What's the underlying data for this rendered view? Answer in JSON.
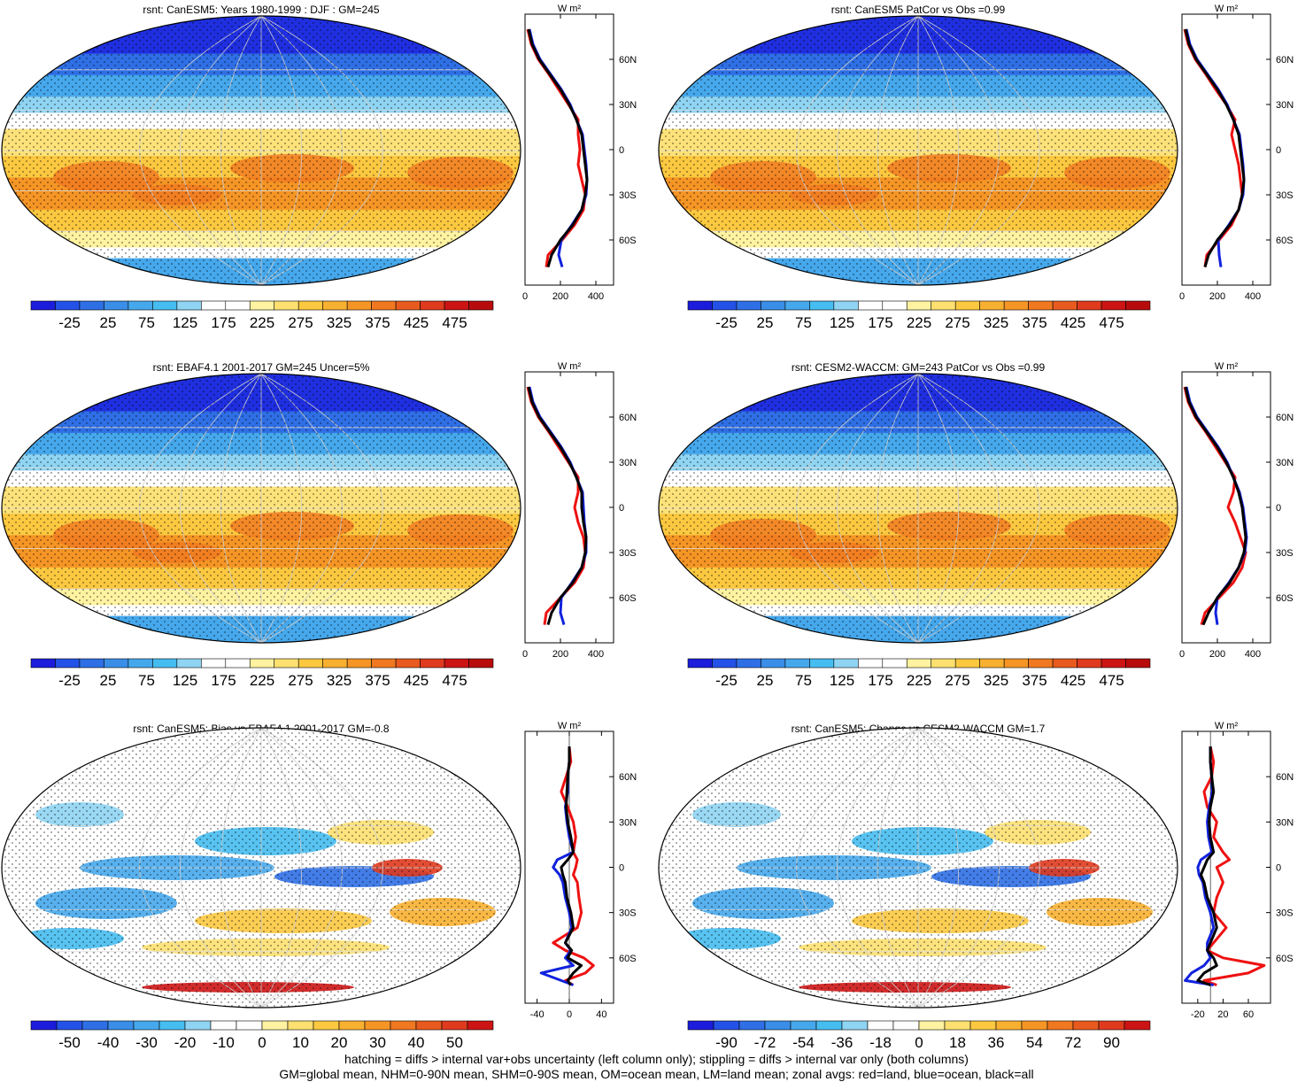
{
  "footer": {
    "line1": "hatching = diffs > internal var+obs uncertainty (left column only); stippling = diffs > internal var only (both columns)",
    "line2": "GM=global mean, NHM=0-90N mean, SHM=0-90S mean, OM=ocean mean, LM=land mean; zonal avgs: red=land, blue=ocean, black=all"
  },
  "colors": {
    "land": "#ee1111",
    "ocean": "#1122dd",
    "all": "#000000"
  },
  "chart_data": [
    {
      "type": "heatmap",
      "id": "p1",
      "title": "rsnt: CanESM5: Years 1980-1999 : DJF : GM=245",
      "colorbar_ticks": [
        "-25",
        "25",
        "75",
        "125",
        "175",
        "225",
        "275",
        "325",
        "375",
        "425",
        "475"
      ],
      "colorbar_range": [
        -50,
        500
      ],
      "zonal": {
        "xlabel": "W m²",
        "xticks": [
          "0",
          "200",
          "400"
        ],
        "xlim": [
          0,
          500
        ],
        "yticks": [
          "60N",
          "30N",
          "0",
          "30S",
          "60S"
        ],
        "lat": [
          80,
          70,
          60,
          50,
          40,
          30,
          20,
          10,
          0,
          -10,
          -20,
          -30,
          -40,
          -50,
          -60,
          -70,
          -78
        ],
        "all": [
          20,
          40,
          80,
          140,
          200,
          250,
          290,
          320,
          330,
          340,
          350,
          340,
          320,
          270,
          200,
          150,
          130
        ],
        "land": [
          15,
          35,
          75,
          135,
          190,
          245,
          300,
          300,
          310,
          300,
          320,
          340,
          330,
          280,
          210,
          130,
          120
        ],
        "ocean": [
          25,
          45,
          85,
          145,
          205,
          255,
          290,
          325,
          335,
          345,
          350,
          345,
          320,
          265,
          205,
          190,
          210
        ]
      },
      "style": "abs"
    },
    {
      "type": "heatmap",
      "id": "p2",
      "title": "rsnt: CanESM5 PatCor vs Obs =0.99",
      "colorbar_ticks": [
        "-25",
        "25",
        "75",
        "125",
        "175",
        "225",
        "275",
        "325",
        "375",
        "425",
        "475"
      ],
      "colorbar_range": [
        -50,
        500
      ],
      "zonal": {
        "xlabel": "W m²",
        "xticks": [
          "0",
          "200",
          "400"
        ],
        "xlim": [
          0,
          500
        ],
        "yticks": [
          "60N",
          "30N",
          "0",
          "30S",
          "60S"
        ],
        "lat": [
          80,
          70,
          60,
          50,
          40,
          30,
          20,
          10,
          0,
          -10,
          -20,
          -30,
          -40,
          -50,
          -60,
          -70,
          -78
        ],
        "all": [
          20,
          40,
          80,
          140,
          200,
          250,
          290,
          320,
          330,
          340,
          350,
          340,
          320,
          270,
          200,
          150,
          130
        ],
        "land": [
          15,
          35,
          75,
          135,
          190,
          250,
          300,
          280,
          300,
          320,
          330,
          340,
          320,
          280,
          210,
          140,
          130
        ],
        "ocean": [
          25,
          45,
          85,
          145,
          205,
          255,
          290,
          325,
          335,
          345,
          350,
          345,
          320,
          265,
          205,
          210,
          220
        ]
      },
      "style": "abs"
    },
    {
      "type": "heatmap",
      "id": "p3",
      "title": "rsnt: EBAF4.1 2001-2017 GM=245 Uncer=5%",
      "colorbar_ticks": [
        "-25",
        "25",
        "75",
        "125",
        "175",
        "225",
        "275",
        "325",
        "375",
        "425",
        "475"
      ],
      "colorbar_range": [
        -50,
        500
      ],
      "zonal": {
        "xlabel": "W m²",
        "xticks": [
          "0",
          "200",
          "400"
        ],
        "xlim": [
          0,
          500
        ],
        "yticks": [
          "60N",
          "30N",
          "0",
          "30S",
          "60S"
        ],
        "lat": [
          80,
          70,
          60,
          50,
          40,
          30,
          20,
          10,
          0,
          -10,
          -20,
          -30,
          -40,
          -50,
          -60,
          -70,
          -78
        ],
        "all": [
          20,
          40,
          80,
          140,
          200,
          250,
          290,
          320,
          320,
          330,
          345,
          340,
          320,
          270,
          200,
          150,
          130
        ],
        "land": [
          15,
          35,
          75,
          135,
          190,
          245,
          300,
          300,
          280,
          300,
          330,
          340,
          330,
          280,
          200,
          120,
          110
        ],
        "ocean": [
          25,
          45,
          85,
          145,
          205,
          255,
          290,
          325,
          330,
          335,
          345,
          345,
          320,
          265,
          205,
          200,
          220
        ]
      },
      "style": "abs"
    },
    {
      "type": "heatmap",
      "id": "p4",
      "title": "rsnt: CESM2-WACCM: GM=243 PatCor vs Obs =0.99",
      "colorbar_ticks": [
        "-25",
        "25",
        "75",
        "125",
        "175",
        "225",
        "275",
        "325",
        "375",
        "425",
        "475"
      ],
      "colorbar_range": [
        -50,
        500
      ],
      "zonal": {
        "xlabel": "W m²",
        "xticks": [
          "0",
          "200",
          "400"
        ],
        "xlim": [
          0,
          500
        ],
        "yticks": [
          "60N",
          "30N",
          "0",
          "30S",
          "60S"
        ],
        "lat": [
          80,
          70,
          60,
          50,
          40,
          30,
          20,
          10,
          0,
          -10,
          -20,
          -30,
          -40,
          -50,
          -60,
          -70,
          -78
        ],
        "all": [
          20,
          40,
          80,
          140,
          200,
          250,
          290,
          320,
          340,
          350,
          360,
          350,
          320,
          270,
          200,
          150,
          120
        ],
        "land": [
          15,
          35,
          75,
          135,
          190,
          245,
          300,
          290,
          260,
          300,
          330,
          360,
          340,
          290,
          210,
          130,
          110
        ],
        "ocean": [
          25,
          45,
          85,
          145,
          205,
          255,
          290,
          325,
          345,
          355,
          365,
          355,
          320,
          265,
          200,
          190,
          200
        ]
      },
      "style": "abs"
    },
    {
      "type": "heatmap",
      "id": "p5",
      "title": "rsnt: CanESM5: Bias vs EBAF4.1 2001-2017 GM=-0.8",
      "colorbar_ticks": [
        "-50",
        "-40",
        "-30",
        "-20",
        "-10",
        "0",
        "10",
        "20",
        "30",
        "40",
        "50"
      ],
      "colorbar_range": [
        -55,
        55
      ],
      "zonal": {
        "xlabel": "W m²",
        "xticks": [
          "-40",
          "0",
          "40"
        ],
        "xlim": [
          -55,
          55
        ],
        "yticks": [
          "60N",
          "30N",
          "0",
          "30S",
          "60S"
        ],
        "lat": [
          80,
          70,
          60,
          50,
          40,
          30,
          20,
          10,
          5,
          0,
          -5,
          -10,
          -20,
          -30,
          -40,
          -50,
          -55,
          -60,
          -65,
          -70,
          -75,
          -78
        ],
        "all": [
          0,
          0,
          -2,
          -3,
          -4,
          -2,
          2,
          5,
          -2,
          -10,
          -8,
          -5,
          -3,
          2,
          5,
          -5,
          3,
          -2,
          15,
          5,
          -2,
          2
        ],
        "land": [
          0,
          2,
          -4,
          -10,
          -2,
          5,
          8,
          5,
          10,
          8,
          5,
          10,
          12,
          15,
          10,
          -20,
          -5,
          18,
          30,
          20,
          -5,
          5
        ],
        "ocean": [
          0,
          0,
          -2,
          -2,
          -5,
          -3,
          0,
          5,
          -15,
          -20,
          -12,
          -8,
          -5,
          0,
          3,
          -5,
          2,
          -5,
          5,
          -35,
          -10,
          5
        ]
      },
      "style": "bias"
    },
    {
      "type": "heatmap",
      "id": "p6",
      "title": "rsnt: CanESM5: Change vs CESM2-WACCM GM=1.7",
      "colorbar_ticks": [
        "-90",
        "-72",
        "-54",
        "-36",
        "-18",
        "0",
        "18",
        "36",
        "54",
        "72",
        "90"
      ],
      "colorbar_range": [
        -99,
        99
      ],
      "zonal": {
        "xlabel": "W m²",
        "xticks": [
          "-20",
          "20",
          "60"
        ],
        "xlim": [
          -45,
          95
        ],
        "yticks": [
          "60N",
          "30N",
          "0",
          "30S",
          "60S"
        ],
        "lat": [
          80,
          70,
          60,
          50,
          40,
          30,
          20,
          10,
          5,
          0,
          -5,
          -10,
          -20,
          -30,
          -40,
          -50,
          -55,
          -60,
          -65,
          -70,
          -75,
          -78
        ],
        "all": [
          0,
          0,
          2,
          5,
          0,
          -2,
          0,
          5,
          -5,
          -10,
          -15,
          -10,
          -5,
          5,
          10,
          0,
          -5,
          5,
          10,
          -10,
          -20,
          0
        ],
        "land": [
          0,
          5,
          2,
          -10,
          -5,
          10,
          5,
          20,
          30,
          10,
          15,
          20,
          10,
          5,
          25,
          5,
          -5,
          20,
          85,
          60,
          -10,
          10
        ],
        "ocean": [
          0,
          0,
          2,
          3,
          -2,
          -5,
          -3,
          2,
          -15,
          -20,
          -18,
          -12,
          -8,
          0,
          5,
          -5,
          -5,
          0,
          -10,
          -30,
          -40,
          5
        ]
      },
      "style": "bias"
    }
  ]
}
